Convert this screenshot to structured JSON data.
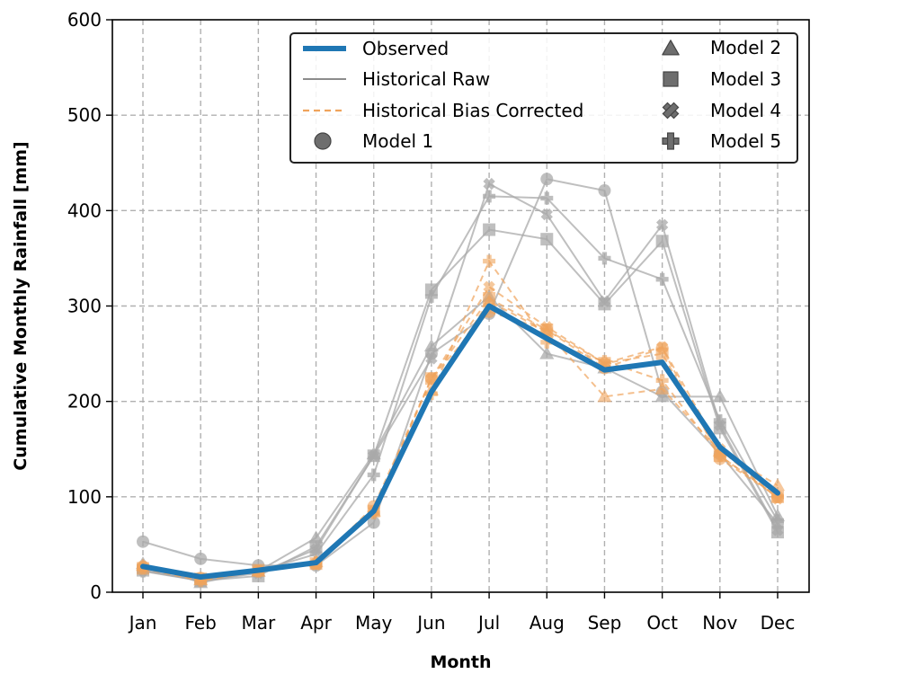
{
  "chart_data": {
    "type": "line",
    "title": "",
    "xlabel": "Month",
    "ylabel": "Cumulative Monthly Rainfall [mm]",
    "categories": [
      "Jan",
      "Feb",
      "Mar",
      "Apr",
      "May",
      "Jun",
      "Jul",
      "Aug",
      "Sep",
      "Oct",
      "Nov",
      "Dec"
    ],
    "ylim": [
      0,
      600
    ],
    "yticks": [
      0,
      100,
      200,
      300,
      400,
      500,
      600
    ],
    "grid": true,
    "legend_position": "top-right",
    "legend": {
      "observed": "Observed",
      "historical_raw": "Historical Raw",
      "historical_bias_corrected": "Historical Bias Corrected",
      "models": [
        "Model 1",
        "Model 2",
        "Model 3",
        "Model 4",
        "Model 5"
      ]
    },
    "colors": {
      "observed": "#1f77b4",
      "raw": "#a9a9a9",
      "corrected": "#f0a45c",
      "legend_marker": "#6e6e6e",
      "legend_border": "#222222"
    },
    "observed": [
      27,
      16,
      23,
      31,
      85,
      210,
      300,
      266,
      233,
      241,
      152,
      104
    ],
    "historical_raw": [
      {
        "model": "Model 1",
        "marker": "circle",
        "values": [
          53,
          35,
          28,
          28,
          73,
          250,
          292,
          433,
          421,
          210,
          145,
          72
        ]
      },
      {
        "model": "Model 2",
        "marker": "triangle",
        "values": [
          30,
          10,
          22,
          57,
          145,
          258,
          310,
          250,
          235,
          205,
          205,
          80
        ]
      },
      {
        "model": "Model 3",
        "marker": "square",
        "values": [
          23,
          12,
          17,
          48,
          143,
          317,
          380,
          370,
          302,
          368,
          172,
          63
        ]
      },
      {
        "model": "Model 4",
        "marker": "x",
        "values": [
          23,
          12,
          20,
          45,
          143,
          245,
          428,
          396,
          305,
          385,
          175,
          65
        ]
      },
      {
        "model": "Model 5",
        "marker": "plus",
        "values": [
          22,
          12,
          22,
          40,
          123,
          310,
          415,
          413,
          350,
          328,
          180,
          75
        ]
      }
    ],
    "historical_bias_corrected": [
      {
        "model": "Model 1",
        "marker": "circle",
        "values": [
          27,
          15,
          22,
          30,
          90,
          224,
          294,
          275,
          235,
          256,
          140,
          100
        ]
      },
      {
        "model": "Model 2",
        "marker": "triangle",
        "values": [
          28,
          13,
          22,
          32,
          85,
          212,
          305,
          273,
          205,
          213,
          148,
          112
        ]
      },
      {
        "model": "Model 3",
        "marker": "square",
        "values": [
          25,
          14,
          23,
          30,
          85,
          224,
          308,
          275,
          240,
          250,
          143,
          100
        ]
      },
      {
        "model": "Model 4",
        "marker": "x",
        "values": [
          26,
          14,
          23,
          29,
          85,
          224,
          320,
          278,
          240,
          257,
          150,
          98
        ]
      },
      {
        "model": "Model 5",
        "marker": "plus",
        "values": [
          25,
          12,
          22,
          31,
          83,
          208,
          347,
          262,
          242,
          222,
          143,
          100
        ]
      }
    ]
  }
}
